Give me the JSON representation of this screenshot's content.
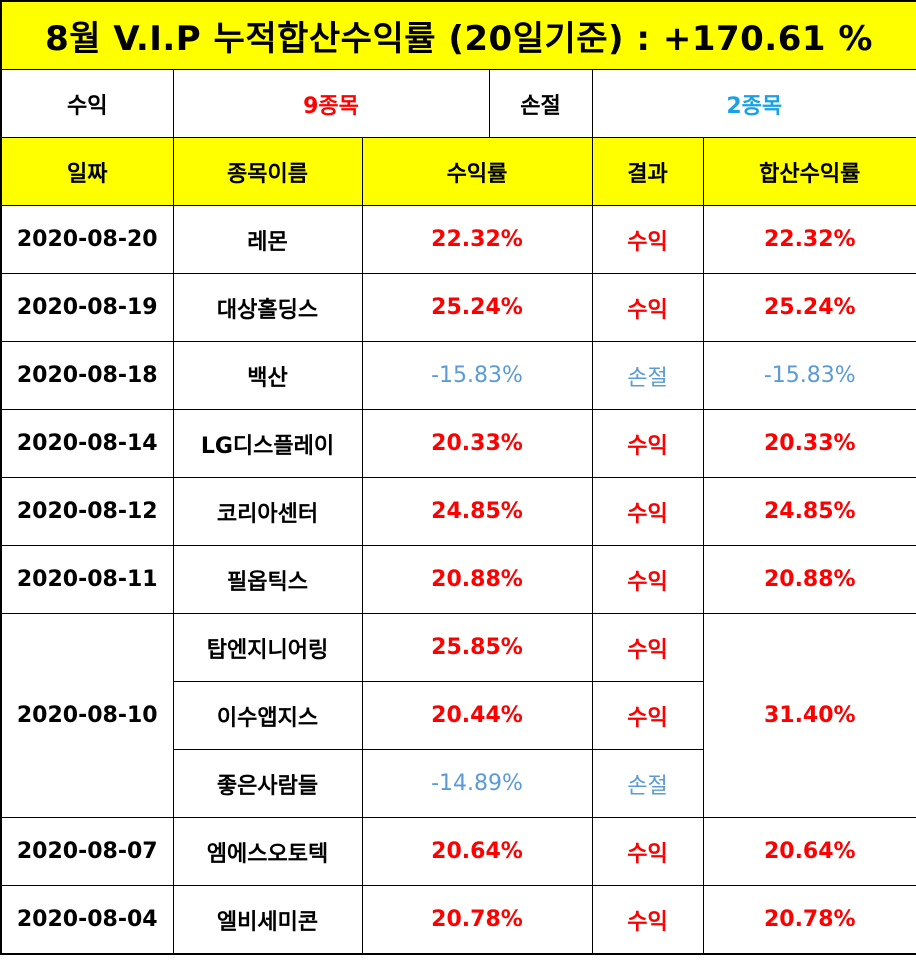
{
  "title": "8월 V.I.P 누적합산수익률 (20일기준) : +170.61 %",
  "summary": {
    "profit_label": "수익",
    "profit_value": "9종목",
    "loss_label": "손절",
    "loss_value": "2종목"
  },
  "headers": [
    "일짜",
    "종목이름",
    "수익률",
    "결과",
    "합산수익률"
  ],
  "colors": {
    "header_bg": "#ffff00",
    "profit": "#ff0000",
    "loss": "#5b9bd5"
  },
  "rows": [
    {
      "date": "2020-08-20",
      "name": "레몬",
      "rate": "22.32%",
      "result": "수익",
      "total": "22.32%",
      "type": "pos"
    },
    {
      "date": "2020-08-19",
      "name": "대상홀딩스",
      "rate": "25.24%",
      "result": "수익",
      "total": "25.24%",
      "type": "pos"
    },
    {
      "date": "2020-08-18",
      "name": "백산",
      "rate": "-15.83%",
      "result": "손절",
      "total": "-15.83%",
      "type": "neg"
    },
    {
      "date": "2020-08-14",
      "name": "LG디스플레이",
      "rate": "20.33%",
      "result": "수익",
      "total": "20.33%",
      "type": "pos"
    },
    {
      "date": "2020-08-12",
      "name": "코리아센터",
      "rate": "24.85%",
      "result": "수익",
      "total": "24.85%",
      "type": "pos"
    },
    {
      "date": "2020-08-11",
      "name": "필옵틱스",
      "rate": "20.88%",
      "result": "수익",
      "total": "20.88%",
      "type": "pos"
    }
  ],
  "group": {
    "date": "2020-08-10",
    "total": "31.40%",
    "items": [
      {
        "name": "탑엔지니어링",
        "rate": "25.85%",
        "result": "수익",
        "type": "pos"
      },
      {
        "name": "이수앱지스",
        "rate": "20.44%",
        "result": "수익",
        "type": "pos"
      },
      {
        "name": "좋은사람들",
        "rate": "-14.89%",
        "result": "손절",
        "type": "neg"
      }
    ]
  },
  "rows_after": [
    {
      "date": "2020-08-07",
      "name": "엠에스오토텍",
      "rate": "20.64%",
      "result": "수익",
      "total": "20.64%",
      "type": "pos"
    },
    {
      "date": "2020-08-04",
      "name": "엘비세미콘",
      "rate": "20.78%",
      "result": "수익",
      "total": "20.78%",
      "type": "pos"
    }
  ]
}
